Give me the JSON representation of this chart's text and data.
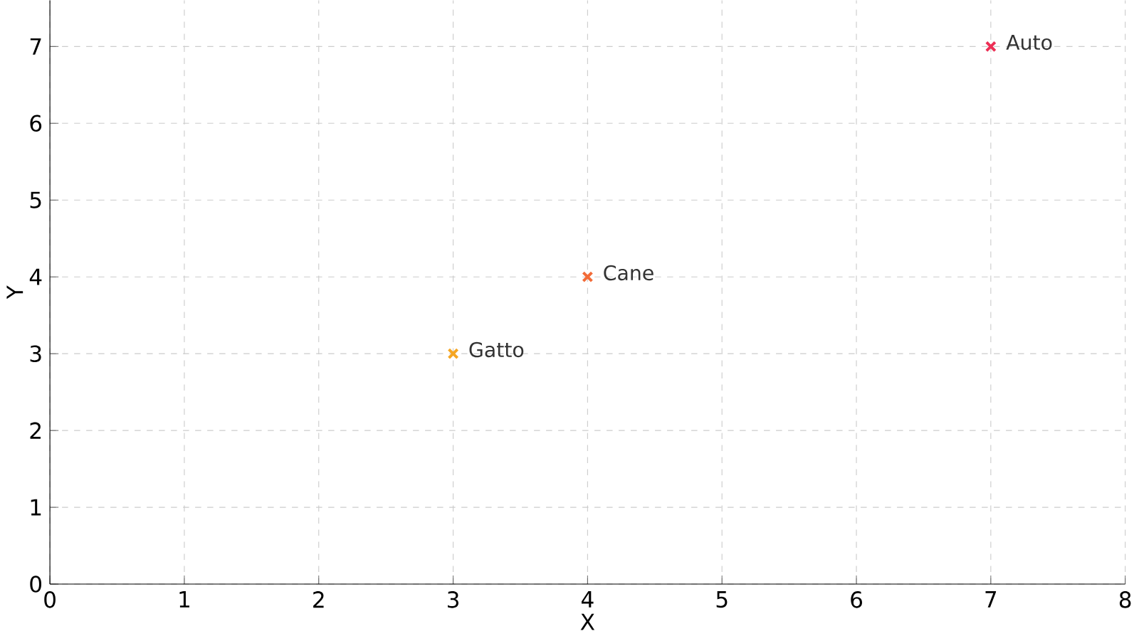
{
  "chart_data": {
    "type": "scatter",
    "xlabel": "X",
    "ylabel": "Y",
    "xlim": [
      0,
      8
    ],
    "ylim": [
      0,
      7.6
    ],
    "xticks": [
      0,
      1,
      2,
      3,
      4,
      5,
      6,
      7,
      8
    ],
    "yticks": [
      0,
      1,
      2,
      3,
      4,
      5,
      6,
      7
    ],
    "grid": true,
    "marker": "cross",
    "series": [
      {
        "name": "Gatto",
        "color": "#f5a623",
        "x": [
          3
        ],
        "values": [
          3
        ]
      },
      {
        "name": "Cane",
        "color": "#f26b38",
        "x": [
          4
        ],
        "values": [
          4
        ]
      },
      {
        "name": "Auto",
        "color": "#ec2f55",
        "x": [
          7
        ],
        "values": [
          7
        ]
      }
    ]
  }
}
